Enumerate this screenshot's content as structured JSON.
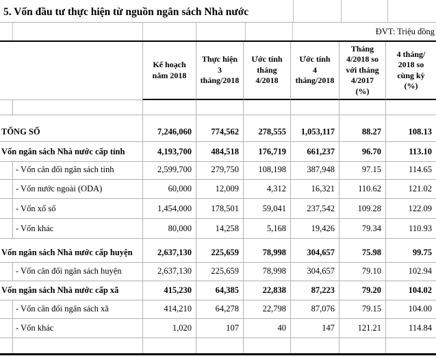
{
  "title": "5. Vốn đầu tư thực hiện từ nguồn ngân sách Nhà nước",
  "unit_note": "ĐVT: Triệu đồng",
  "flag_color": "#177c17",
  "table": {
    "columns": [
      "Kế hoạch\nnăm 2018",
      "Thực hiện\n3\ntháng/2018",
      "Ước tính\ntháng\n4/2018",
      "Ước tính\n4\ntháng/2018",
      "Tháng\n4/2018 so\nvới tháng\n4/2017\n(%)",
      "4 tháng/\n2018 so\ncùng kỳ\n(%)"
    ],
    "rows": [
      {
        "label": "TỔNG SỐ",
        "style": "total",
        "values": [
          "7,246,060",
          "774,562",
          "278,555",
          "1,053,117",
          "88.27",
          "108.13"
        ]
      },
      {
        "label": "Vốn ngân sách Nhà nước cấp tỉnh",
        "style": "section",
        "values": [
          "4,193,700",
          "484,518",
          "176,719",
          "661,237",
          "96.70",
          "113.10"
        ]
      },
      {
        "label": "- Vốn cân đối ngân sách tỉnh",
        "style": "sub",
        "values": [
          "2,599,700",
          "279,750",
          "108,198",
          "387,948",
          "97.15",
          "114.65"
        ]
      },
      {
        "label": "- Vốn nước ngoài (ODA)",
        "style": "sub",
        "values": [
          "60,000",
          "12,009",
          "4,312",
          "16,321",
          "110.62",
          "121.02"
        ]
      },
      {
        "label": "- Vốn xổ số",
        "style": "sub",
        "values": [
          "1,454,000",
          "178,501",
          "59,041",
          "237,542",
          "109.28",
          "122.09"
        ]
      },
      {
        "label": "- Vốn khác",
        "style": "sub",
        "values": [
          "80,000",
          "14,258",
          "5,168",
          "19,426",
          "79.34",
          "110.93"
        ]
      },
      {
        "label": "Vốn ngân sách Nhà nước cấp huyện",
        "style": "section",
        "flag_on_value_index": 1,
        "values": [
          "2,637,130",
          "225,659",
          "78,998",
          "304,657",
          "75.98",
          "99.75"
        ]
      },
      {
        "label": "- Vốn cân đối ngân sách huyện",
        "style": "sub",
        "values": [
          "2,637,130",
          "225,659",
          "78,998",
          "304,657",
          "79.10",
          "102.94"
        ]
      },
      {
        "label": "Vốn ngân sách Nhà nước cấp xã",
        "style": "section",
        "flag_on_value_index": 1,
        "values": [
          "415,230",
          "64,385",
          "22,838",
          "87,223",
          "79.20",
          "104.02"
        ]
      },
      {
        "label": "- Vốn cân đối ngân sách xã",
        "style": "sub",
        "values": [
          "414,210",
          "64,278",
          "22,798",
          "87,076",
          "79.15",
          "104.00"
        ]
      },
      {
        "label": "- Vốn khác",
        "style": "sub",
        "values": [
          "1,020",
          "107",
          "40",
          "147",
          "121.21",
          "114.84"
        ]
      }
    ]
  }
}
